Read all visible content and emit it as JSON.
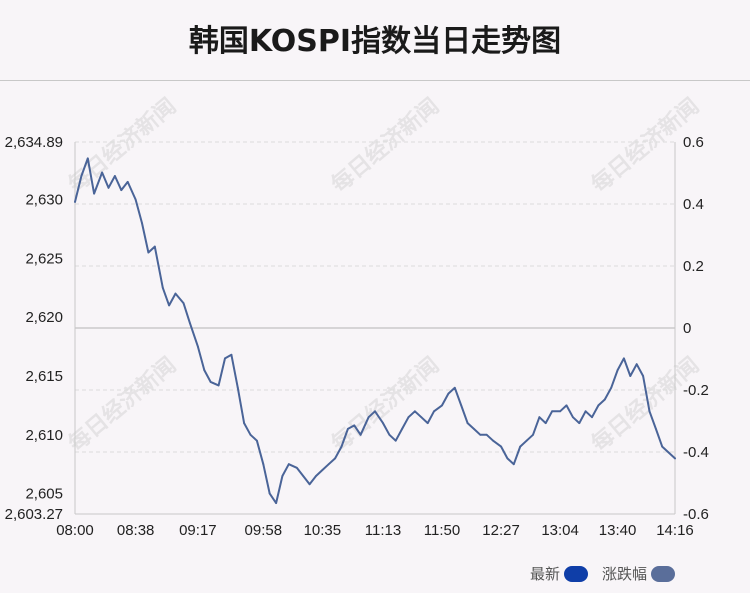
{
  "title": "韩国KOSPI指数当日走势图",
  "watermark": "每日经济新闻",
  "legend": [
    {
      "label": "最新",
      "color": "#0f3ea8"
    },
    {
      "label": "涨跌幅",
      "color": "#5a6e9a"
    }
  ],
  "chart_data": {
    "type": "line",
    "x_ticks": [
      "08:00",
      "08:38",
      "09:17",
      "09:58",
      "10:35",
      "11:13",
      "11:50",
      "12:27",
      "13:04",
      "13:40",
      "14:16"
    ],
    "y_left_ticks": [
      "2,634.89",
      "2,630",
      "2,625",
      "2,620",
      "2,615",
      "2,610",
      "2,605",
      "2,603.27"
    ],
    "y_left_tick_values": [
      2634.89,
      2630,
      2625,
      2620,
      2615,
      2610,
      2605,
      2603.27
    ],
    "y_right_ticks": [
      "0.6",
      "0.4",
      "0.2",
      "0",
      "-0.2",
      "-0.4",
      "-0.6"
    ],
    "y_right_tick_values": [
      0.6,
      0.4,
      0.2,
      0,
      -0.2,
      -0.4,
      -0.6
    ],
    "ylim_left": [
      2603.27,
      2634.89
    ],
    "ylim_right": [
      -0.6,
      0.6
    ],
    "zero_line_value": 2619.08,
    "series": [
      {
        "name": "最新",
        "line_color": "#4a6498",
        "x": [
          "08:00",
          "08:04",
          "08:08",
          "08:12",
          "08:17",
          "08:21",
          "08:25",
          "08:29",
          "08:33",
          "08:38",
          "08:42",
          "08:46",
          "08:50",
          "08:55",
          "08:59",
          "09:03",
          "09:08",
          "09:12",
          "09:17",
          "09:21",
          "09:25",
          "09:30",
          "09:34",
          "09:38",
          "09:42",
          "09:46",
          "09:50",
          "09:54",
          "09:58",
          "10:02",
          "10:06",
          "10:10",
          "10:14",
          "10:19",
          "10:23",
          "10:27",
          "10:31",
          "10:35",
          "10:39",
          "10:43",
          "10:47",
          "10:51",
          "10:55",
          "10:59",
          "11:04",
          "11:08",
          "11:13",
          "11:17",
          "11:21",
          "11:25",
          "11:29",
          "11:33",
          "11:37",
          "11:41",
          "11:45",
          "11:50",
          "11:54",
          "11:58",
          "12:02",
          "12:06",
          "12:10",
          "12:14",
          "12:18",
          "12:22",
          "12:27",
          "12:31",
          "12:35",
          "12:39",
          "12:43",
          "12:47",
          "12:51",
          "12:55",
          "12:59",
          "13:04",
          "13:08",
          "13:12",
          "13:16",
          "13:20",
          "13:24",
          "13:28",
          "13:32",
          "13:36",
          "13:40",
          "13:44",
          "13:48",
          "13:52",
          "13:56",
          "14:00",
          "14:04",
          "14:08",
          "14:12",
          "14:16"
        ],
        "values": [
          2629.8,
          2632.0,
          2633.5,
          2630.5,
          2632.3,
          2631.0,
          2632.0,
          2630.8,
          2631.5,
          2630.0,
          2628.0,
          2625.5,
          2626.0,
          2622.5,
          2621.0,
          2622.0,
          2621.2,
          2619.5,
          2617.5,
          2615.5,
          2614.5,
          2614.2,
          2616.5,
          2616.8,
          2614.0,
          2611.0,
          2610.0,
          2609.5,
          2607.5,
          2605.0,
          2604.2,
          2606.5,
          2607.5,
          2607.2,
          2606.5,
          2605.8,
          2606.5,
          2607.0,
          2607.5,
          2608.0,
          2609.0,
          2610.5,
          2610.8,
          2610.0,
          2611.5,
          2612.0,
          2611.0,
          2610.0,
          2609.5,
          2610.5,
          2611.5,
          2612.0,
          2611.5,
          2611.0,
          2612.0,
          2612.5,
          2613.5,
          2614.0,
          2612.5,
          2611.0,
          2610.5,
          2610.0,
          2610.0,
          2609.5,
          2609.0,
          2608.0,
          2607.5,
          2609.0,
          2609.5,
          2610.0,
          2611.5,
          2611.0,
          2612.0,
          2612.0,
          2612.5,
          2611.5,
          2611.0,
          2612.0,
          2611.5,
          2612.5,
          2613.0,
          2614.0,
          2615.5,
          2616.5,
          2615.0,
          2616.0,
          2615.0,
          2612.0,
          2610.5,
          2609.0,
          2608.5,
          2608.0
        ]
      }
    ]
  }
}
